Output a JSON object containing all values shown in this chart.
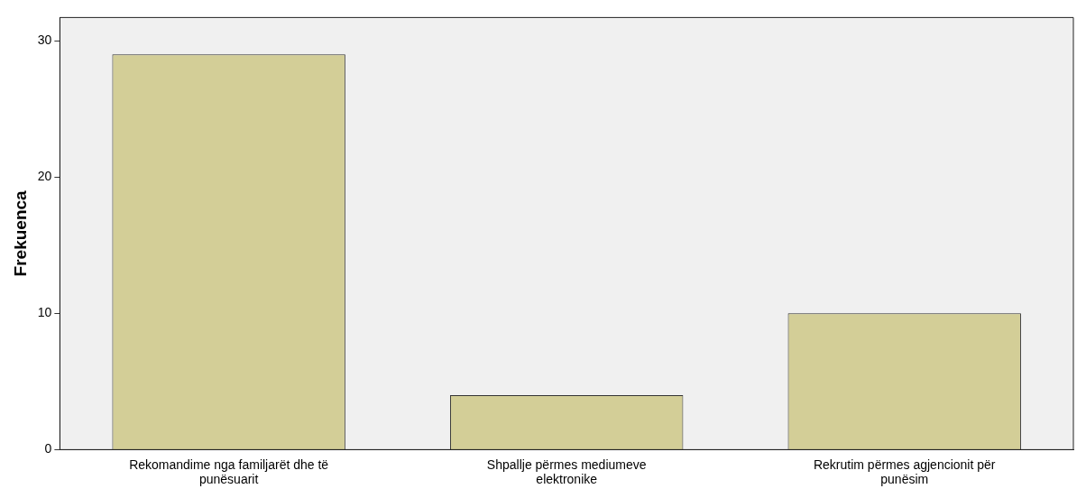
{
  "chart_data": {
    "type": "bar",
    "ylabel": "Frekuenca",
    "categories": [
      "Rekomandime nga familjarët dhe të punësuarit",
      "Shpallje përmes mediumeve elektronike",
      "Rekrutim përmes agjencionit për punësim"
    ],
    "values": [
      29,
      4,
      10
    ],
    "color": "#d3ce97",
    "ylim": [
      0,
      31.7
    ],
    "yticks": [
      0,
      10,
      20,
      30
    ],
    "grid": false,
    "legend": false
  }
}
